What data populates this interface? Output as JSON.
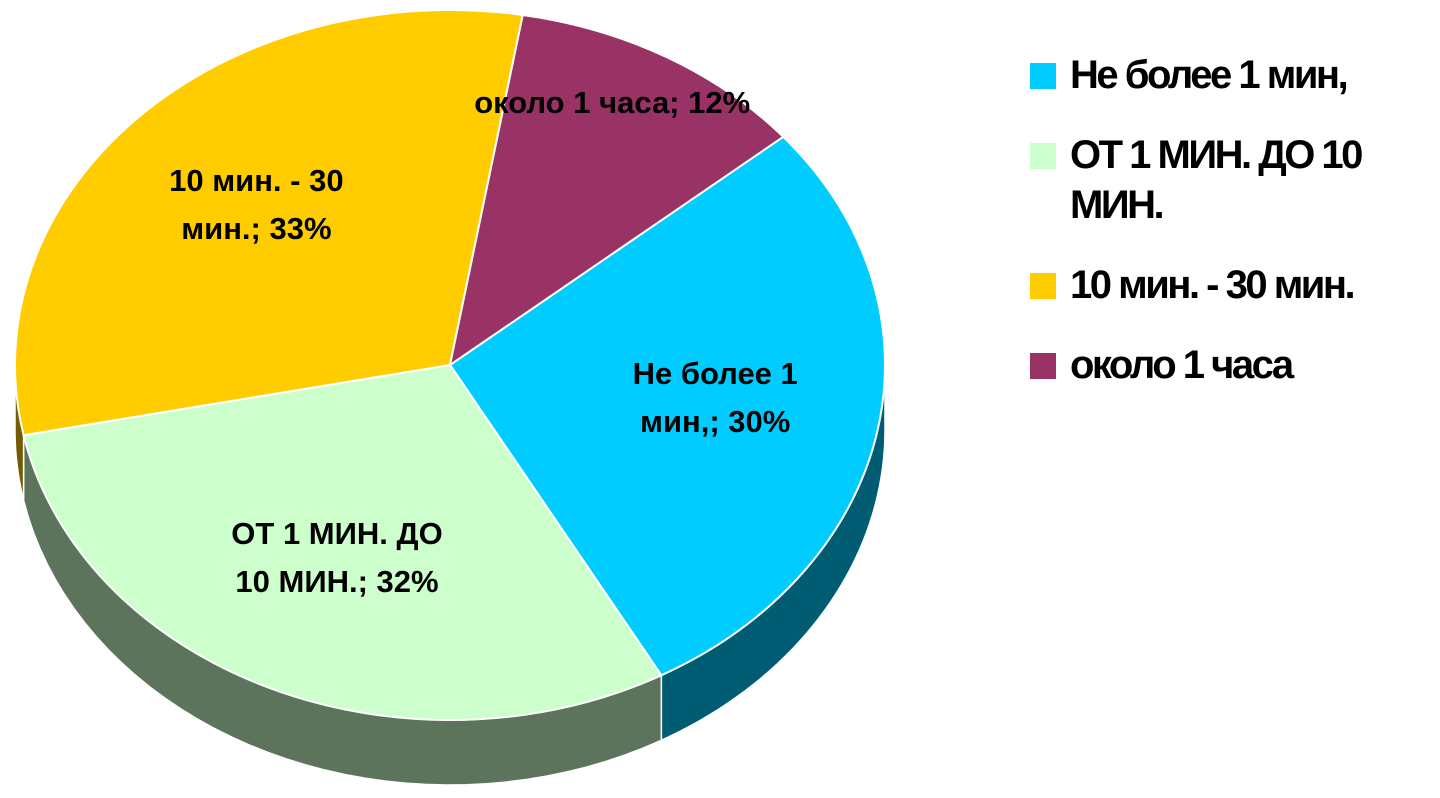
{
  "chart_data": {
    "type": "pie",
    "categories": [
      "Не более 1 мин,",
      "ОТ 1 МИН. ДО 10 МИН.",
      "10 мин. - 30 мин.",
      "около 1 часа"
    ],
    "values": [
      30,
      32,
      33,
      12
    ],
    "value_labels": [
      "Не более 1 мин,; 30%",
      "ОТ 1 МИН. ДО 10 МИН.; 32%",
      "10 мин. - 30 мин.; 33%",
      "около 1 часа; 12%"
    ],
    "colors": [
      "#00ccff",
      "#ccffcc",
      "#ffcc00",
      "#993366"
    ],
    "legend": "right"
  }
}
